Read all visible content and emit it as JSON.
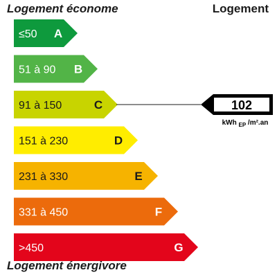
{
  "header": {
    "left_label": "Logement économe",
    "right_label": "Logement"
  },
  "footer": {
    "label": "Logement énergivore"
  },
  "chart_data": {
    "type": "energy_rating",
    "classes": [
      {
        "range": "≤50",
        "letter": "A",
        "color": "#0e9a3d",
        "text_color": "#ffffff"
      },
      {
        "range": "51 à 90",
        "letter": "B",
        "color": "#52b447",
        "text_color": "#ffffff"
      },
      {
        "range": "91 à 150",
        "letter": "C",
        "color": "#c8d400",
        "text_color": "#1a1a1a"
      },
      {
        "range": "151 à 230",
        "letter": "D",
        "color": "#ffed00",
        "text_color": "#1a1a1a"
      },
      {
        "range": "231 à 330",
        "letter": "E",
        "color": "#f6b300",
        "text_color": "#1a1a1a"
      },
      {
        "range": "331 à 450",
        "letter": "F",
        "color": "#ec6b0c",
        "text_color": "#ffffff"
      },
      {
        "range": ">450",
        "letter": "G",
        "color": "#e3051b",
        "text_color": "#ffffff"
      }
    ],
    "current_value": "102",
    "current_class_index": 2,
    "unit": {
      "main": "kWh",
      "subscript": "EP",
      "suffix": "/m².an"
    }
  }
}
